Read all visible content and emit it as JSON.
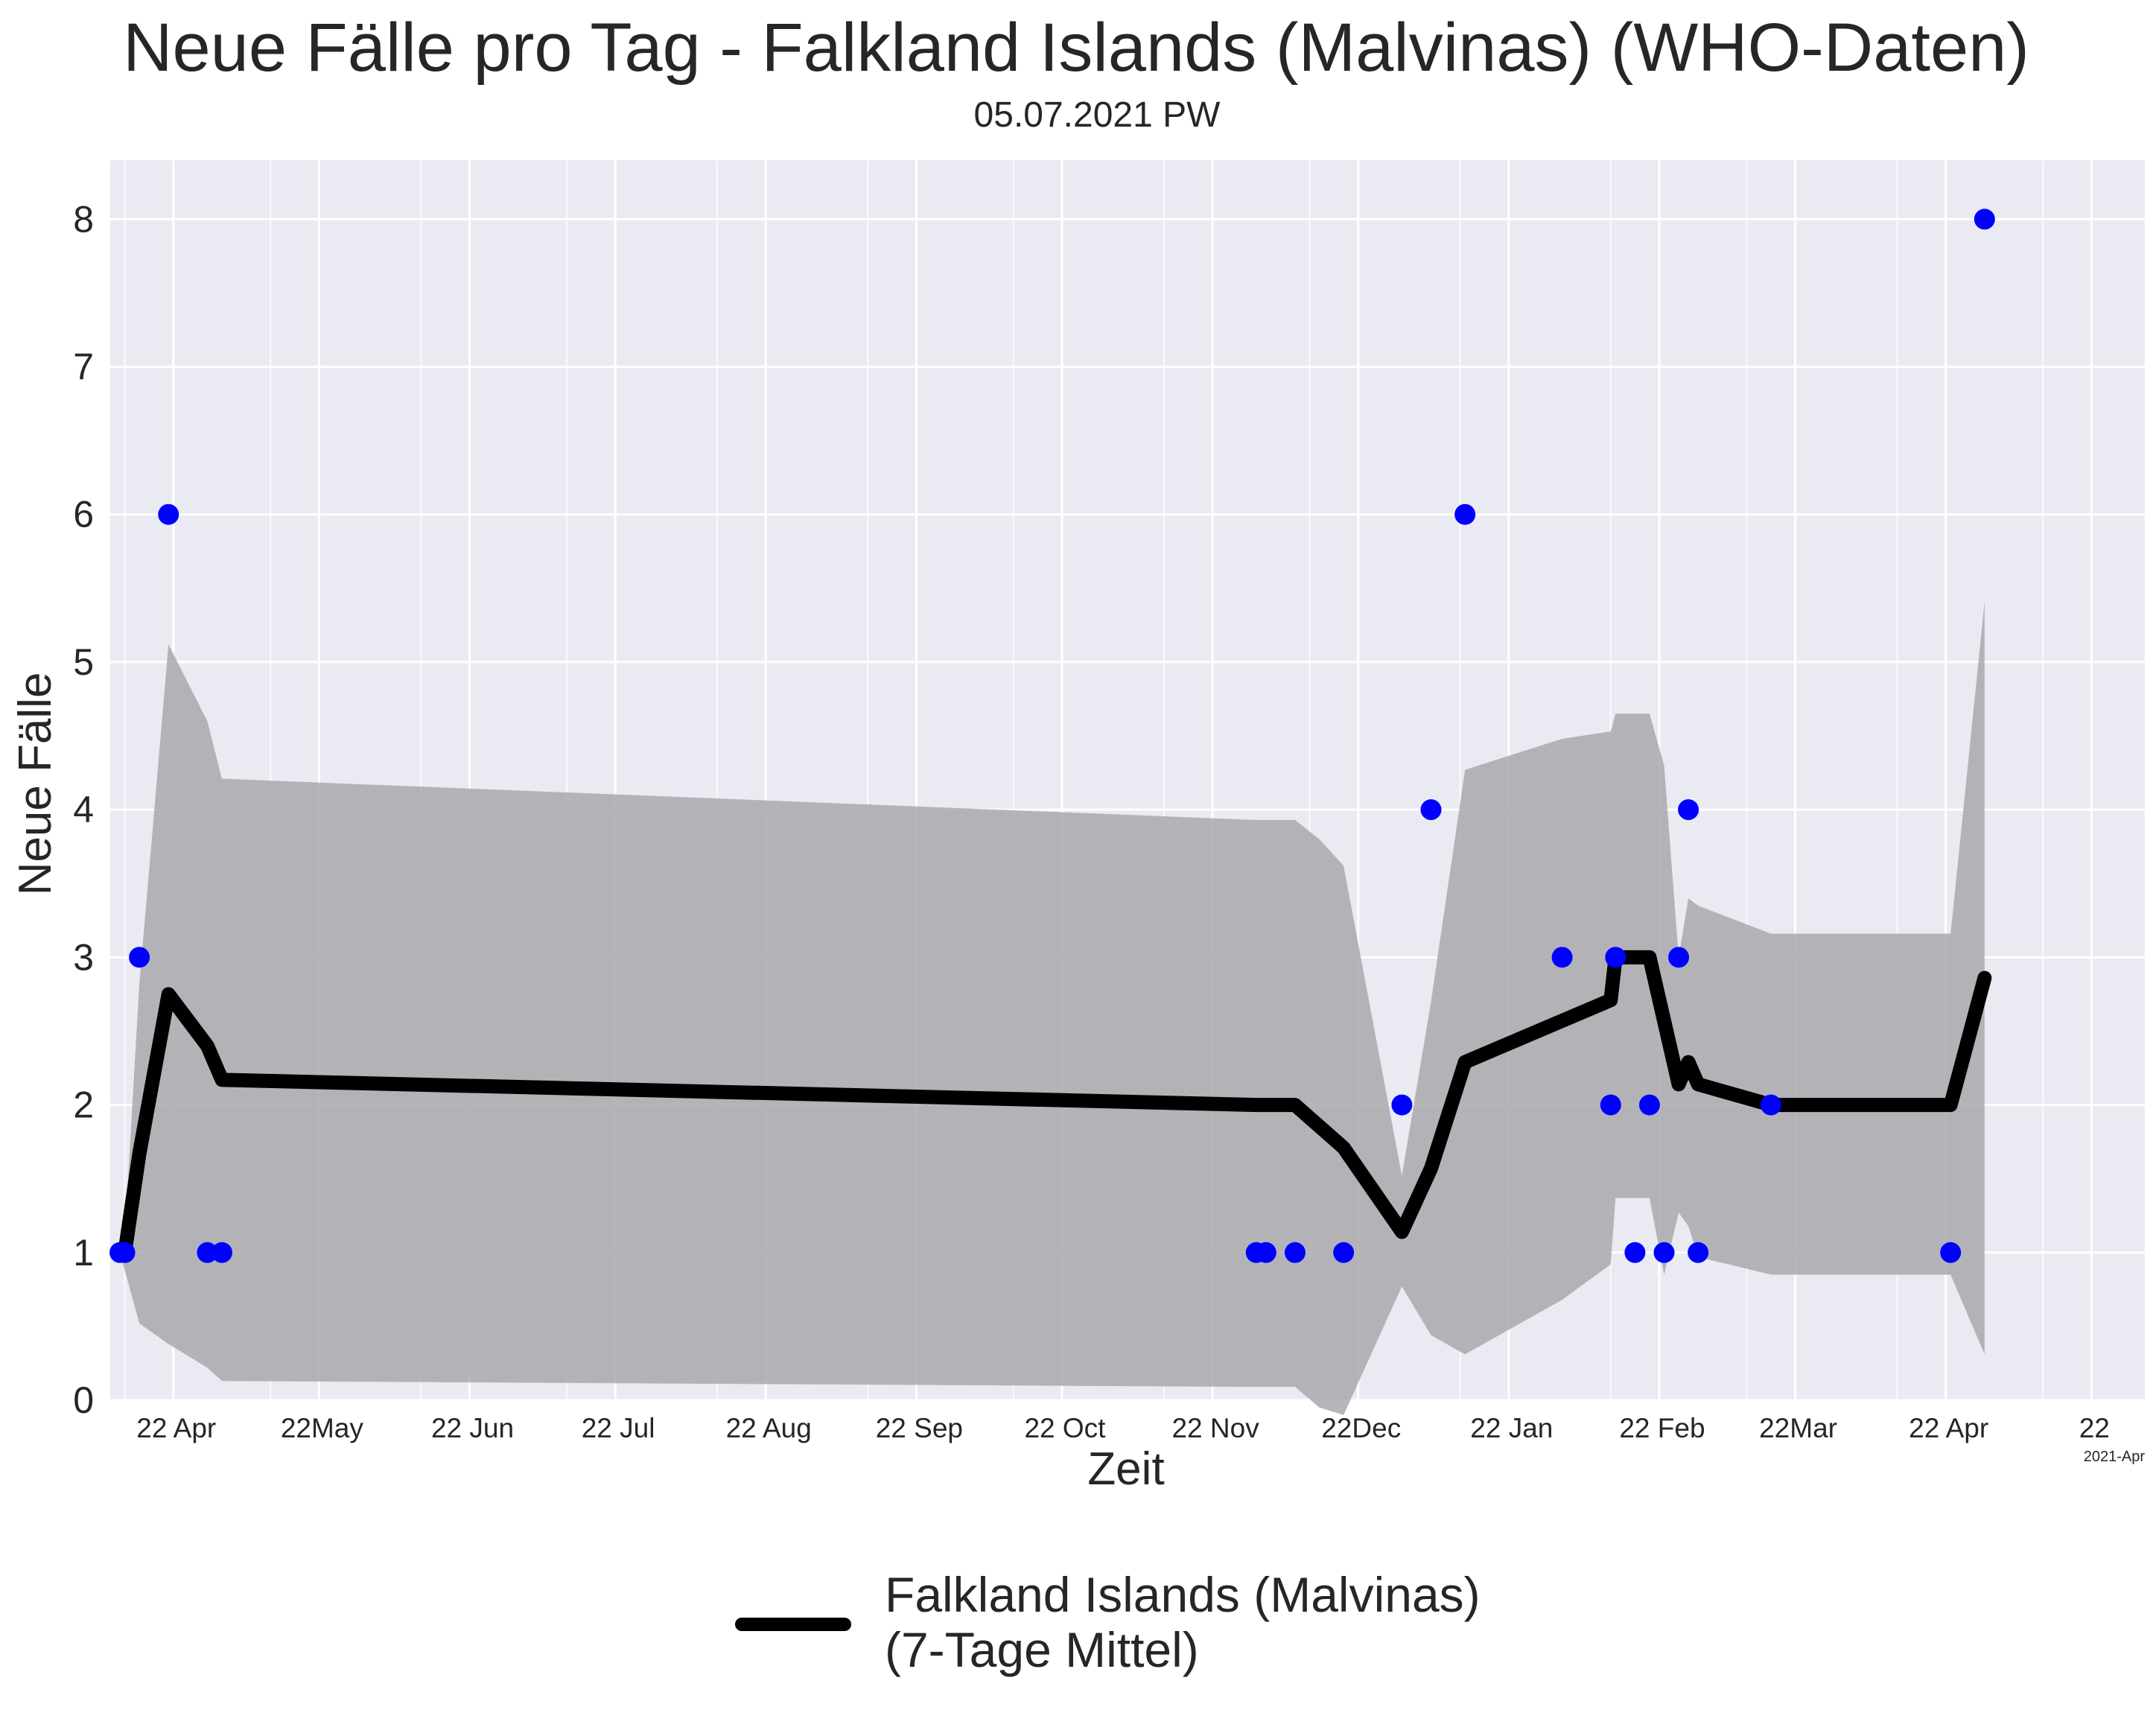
{
  "chart_data": {
    "type": "line",
    "title": "Neue Fälle pro Tag - Falkland Islands (Malvinas) (WHO-Daten)",
    "subtitle": "05.07.2021 PW",
    "xlabel": "Zeit",
    "ylabel": "Neue Fälle",
    "x_offset_label": "2021-Apr",
    "ylim": [
      0,
      8.4
    ],
    "yticks": [
      0,
      1,
      2,
      3,
      4,
      5,
      6,
      7,
      8
    ],
    "grid": true,
    "legend_position": "bottom-center",
    "x_axis": {
      "type": "date",
      "range": [
        "2020-04-02",
        "2021-05-26"
      ],
      "ticks": [
        {
          "date": "2020-04-15",
          "label": "22 Apr"
        },
        {
          "date": "2020-05-15",
          "label": "22May"
        },
        {
          "date": "2020-06-15",
          "label": "22 Jun"
        },
        {
          "date": "2020-07-15",
          "label": "22 Jul"
        },
        {
          "date": "2020-08-15",
          "label": "22 Aug"
        },
        {
          "date": "2020-09-15",
          "label": "22 Sep"
        },
        {
          "date": "2020-10-15",
          "label": "22 Oct"
        },
        {
          "date": "2020-11-15",
          "label": "22 Nov"
        },
        {
          "date": "2020-12-15",
          "label": "22Dec"
        },
        {
          "date": "2021-01-15",
          "label": "22 Jan"
        },
        {
          "date": "2021-02-15",
          "label": "22 Feb"
        },
        {
          "date": "2021-03-15",
          "label": "22Mar"
        },
        {
          "date": "2021-04-15",
          "label": "22 Apr"
        },
        {
          "date": "2021-05-15",
          "label": "22"
        }
      ],
      "minor_grid_dates": [
        "2020-04-05",
        "2020-05-05",
        "2020-06-05",
        "2020-07-05",
        "2020-08-05",
        "2020-09-05",
        "2020-10-05",
        "2020-11-05",
        "2020-12-05",
        "2021-01-05",
        "2021-02-05",
        "2021-03-05",
        "2021-04-05",
        "2021-05-05"
      ]
    },
    "series": [
      {
        "name": "",
        "kind": "scatter",
        "color": "#0000ff",
        "points": [
          {
            "x": "2020-04-04",
            "y": 1
          },
          {
            "x": "2020-04-05",
            "y": 1
          },
          {
            "x": "2020-04-08",
            "y": 3
          },
          {
            "x": "2020-04-14",
            "y": 6
          },
          {
            "x": "2020-04-22",
            "y": 1
          },
          {
            "x": "2020-04-25",
            "y": 1
          },
          {
            "x": "2020-11-24",
            "y": 1
          },
          {
            "x": "2020-11-26",
            "y": 1
          },
          {
            "x": "2020-12-02",
            "y": 1
          },
          {
            "x": "2020-12-12",
            "y": 1
          },
          {
            "x": "2020-12-24",
            "y": 2
          },
          {
            "x": "2020-12-30",
            "y": 4
          },
          {
            "x": "2021-01-06",
            "y": 6
          },
          {
            "x": "2021-01-26",
            "y": 3
          },
          {
            "x": "2021-02-05",
            "y": 2
          },
          {
            "x": "2021-02-06",
            "y": 3
          },
          {
            "x": "2021-02-10",
            "y": 1
          },
          {
            "x": "2021-02-13",
            "y": 2
          },
          {
            "x": "2021-02-16",
            "y": 1
          },
          {
            "x": "2021-02-19",
            "y": 3
          },
          {
            "x": "2021-02-21",
            "y": 4
          },
          {
            "x": "2021-02-23",
            "y": 1
          },
          {
            "x": "2021-03-10",
            "y": 2
          },
          {
            "x": "2021-04-16",
            "y": 1
          },
          {
            "x": "2021-04-23",
            "y": 8
          }
        ]
      },
      {
        "name": "Falkland Islands (Malvinas)\n(7-Tage Mittel)",
        "kind": "line",
        "color": "#000000",
        "points": [
          {
            "x": "2020-04-04",
            "y": 1
          },
          {
            "x": "2020-04-05",
            "y": 1
          },
          {
            "x": "2020-04-08",
            "y": 1.67
          },
          {
            "x": "2020-04-14",
            "y": 2.75
          },
          {
            "x": "2020-04-22",
            "y": 2.4
          },
          {
            "x": "2020-04-25",
            "y": 2.17
          },
          {
            "x": "2020-11-24",
            "y": 2.0
          },
          {
            "x": "2020-12-02",
            "y": 2.0
          },
          {
            "x": "2020-12-12",
            "y": 1.71
          },
          {
            "x": "2020-12-24",
            "y": 1.14
          },
          {
            "x": "2020-12-30",
            "y": 1.57
          },
          {
            "x": "2021-01-06",
            "y": 2.29
          },
          {
            "x": "2021-02-05",
            "y": 2.71
          },
          {
            "x": "2021-02-06",
            "y": 3.0
          },
          {
            "x": "2021-02-13",
            "y": 3.0
          },
          {
            "x": "2021-02-19",
            "y": 2.14
          },
          {
            "x": "2021-02-21",
            "y": 2.29
          },
          {
            "x": "2021-02-23",
            "y": 2.14
          },
          {
            "x": "2021-03-10",
            "y": 2.0
          },
          {
            "x": "2021-04-16",
            "y": 2.0
          },
          {
            "x": "2021-04-23",
            "y": 2.86
          }
        ]
      },
      {
        "name": "",
        "kind": "band",
        "color": "#a9a9ad",
        "points": [
          {
            "x": "2020-04-04",
            "lower": 1.0,
            "upper": 1.0
          },
          {
            "x": "2020-04-05",
            "lower": 0.88,
            "upper": 1.12
          },
          {
            "x": "2020-04-08",
            "lower": 0.52,
            "upper": 2.82
          },
          {
            "x": "2020-04-14",
            "lower": 0.38,
            "upper": 5.12
          },
          {
            "x": "2020-04-22",
            "lower": 0.22,
            "upper": 4.6
          },
          {
            "x": "2020-04-25",
            "lower": 0.13,
            "upper": 4.21
          },
          {
            "x": "2020-11-24",
            "lower": 0.09,
            "upper": 3.93
          },
          {
            "x": "2020-12-02",
            "lower": 0.09,
            "upper": 3.93
          },
          {
            "x": "2020-12-07",
            "lower": -0.05,
            "upper": 3.8
          },
          {
            "x": "2020-12-12",
            "lower": -0.1,
            "upper": 3.62
          },
          {
            "x": "2020-12-24",
            "lower": 0.77,
            "upper": 1.52
          },
          {
            "x": "2020-12-30",
            "lower": 0.44,
            "upper": 2.7
          },
          {
            "x": "2021-01-06",
            "lower": 0.31,
            "upper": 4.27
          },
          {
            "x": "2021-01-26",
            "lower": 0.68,
            "upper": 4.48
          },
          {
            "x": "2021-02-05",
            "lower": 0.92,
            "upper": 4.53
          },
          {
            "x": "2021-02-06",
            "lower": 1.37,
            "upper": 4.65
          },
          {
            "x": "2021-02-13",
            "lower": 1.37,
            "upper": 4.65
          },
          {
            "x": "2021-02-16",
            "lower": 0.85,
            "upper": 4.3
          },
          {
            "x": "2021-02-19",
            "lower": 1.27,
            "upper": 3.0
          },
          {
            "x": "2021-02-21",
            "lower": 1.18,
            "upper": 3.4
          },
          {
            "x": "2021-02-23",
            "lower": 0.97,
            "upper": 3.35
          },
          {
            "x": "2021-03-10",
            "lower": 0.85,
            "upper": 3.16
          },
          {
            "x": "2021-04-16",
            "lower": 0.85,
            "upper": 3.16
          },
          {
            "x": "2021-04-23",
            "lower": 0.31,
            "upper": 5.41
          }
        ]
      }
    ]
  }
}
